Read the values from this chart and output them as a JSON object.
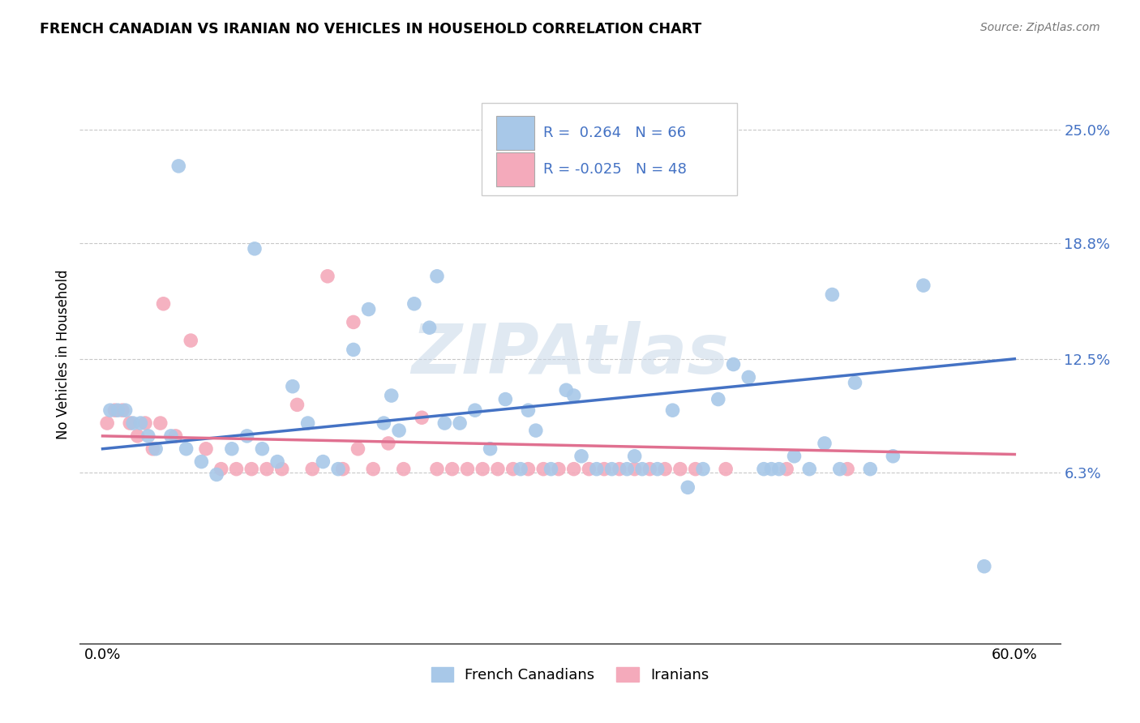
{
  "title": "FRENCH CANADIAN VS IRANIAN NO VEHICLES IN HOUSEHOLD CORRELATION CHART",
  "source": "Source: ZipAtlas.com",
  "ylabel": "No Vehicles in Household",
  "x_ticks": [
    0.0,
    10.0,
    20.0,
    30.0,
    40.0,
    50.0,
    60.0
  ],
  "y_ticks": [
    0.063,
    0.125,
    0.188,
    0.25
  ],
  "y_tick_labels": [
    "6.3%",
    "12.5%",
    "18.8%",
    "25.0%"
  ],
  "ylim": [
    -0.03,
    0.285
  ],
  "xlim": [
    -1.5,
    63.0
  ],
  "blue_R": "0.264",
  "blue_N": "66",
  "pink_R": "-0.025",
  "pink_N": "48",
  "blue_color": "#A8C8E8",
  "pink_color": "#F4AABB",
  "blue_line_color": "#4472C4",
  "pink_line_color": "#E07090",
  "watermark": "ZIPAtlas",
  "blue_scatter_x": [
    0.5,
    1.0,
    1.5,
    2.0,
    2.5,
    3.0,
    3.5,
    4.5,
    5.5,
    6.5,
    7.5,
    8.5,
    9.5,
    10.5,
    11.5,
    12.5,
    13.5,
    14.5,
    15.5,
    16.5,
    17.5,
    18.5,
    19.5,
    20.5,
    21.5,
    22.5,
    23.5,
    24.5,
    25.5,
    26.5,
    27.5,
    28.5,
    29.5,
    30.5,
    31.5,
    32.5,
    33.5,
    34.5,
    35.5,
    36.5,
    37.5,
    38.5,
    39.5,
    40.5,
    41.5,
    42.5,
    43.5,
    44.5,
    45.5,
    46.5,
    47.5,
    48.5,
    49.5,
    50.5,
    52.0,
    54.0,
    35.0,
    22.0,
    44.0,
    28.0,
    19.0,
    31.0,
    10.0,
    58.0,
    5.0,
    48.0
  ],
  "blue_scatter_y": [
    0.097,
    0.097,
    0.097,
    0.09,
    0.09,
    0.083,
    0.076,
    0.083,
    0.076,
    0.069,
    0.062,
    0.076,
    0.083,
    0.076,
    0.069,
    0.11,
    0.09,
    0.069,
    0.065,
    0.13,
    0.152,
    0.09,
    0.086,
    0.155,
    0.142,
    0.09,
    0.09,
    0.097,
    0.076,
    0.103,
    0.065,
    0.086,
    0.065,
    0.108,
    0.072,
    0.065,
    0.065,
    0.065,
    0.065,
    0.065,
    0.097,
    0.055,
    0.065,
    0.103,
    0.122,
    0.115,
    0.065,
    0.065,
    0.072,
    0.065,
    0.079,
    0.065,
    0.112,
    0.065,
    0.072,
    0.165,
    0.072,
    0.17,
    0.065,
    0.097,
    0.105,
    0.105,
    0.185,
    0.012,
    0.23,
    0.16
  ],
  "pink_scatter_x": [
    0.3,
    0.8,
    1.3,
    1.8,
    2.3,
    2.8,
    3.3,
    3.8,
    4.8,
    5.8,
    6.8,
    7.8,
    8.8,
    9.8,
    10.8,
    11.8,
    12.8,
    13.8,
    14.8,
    15.8,
    16.8,
    17.8,
    18.8,
    19.8,
    21.0,
    22.0,
    23.0,
    24.0,
    25.0,
    26.0,
    27.0,
    28.0,
    29.0,
    30.0,
    31.0,
    32.0,
    33.0,
    34.0,
    35.0,
    36.0,
    37.0,
    38.0,
    39.0,
    41.0,
    45.0,
    49.0,
    4.0,
    16.5
  ],
  "pink_scatter_y": [
    0.09,
    0.097,
    0.097,
    0.09,
    0.083,
    0.09,
    0.076,
    0.09,
    0.083,
    0.135,
    0.076,
    0.065,
    0.065,
    0.065,
    0.065,
    0.065,
    0.1,
    0.065,
    0.17,
    0.065,
    0.076,
    0.065,
    0.079,
    0.065,
    0.093,
    0.065,
    0.065,
    0.065,
    0.065,
    0.065,
    0.065,
    0.065,
    0.065,
    0.065,
    0.065,
    0.065,
    0.065,
    0.065,
    0.065,
    0.065,
    0.065,
    0.065,
    0.065,
    0.065,
    0.065,
    0.065,
    0.155,
    0.145
  ],
  "blue_trend_y_start": 0.076,
  "blue_trend_y_end": 0.125,
  "pink_trend_y_start": 0.083,
  "pink_trend_y_end": 0.073,
  "legend_blue_label": "R =  0.264   N = 66",
  "legend_pink_label": "R = -0.025   N = 48"
}
